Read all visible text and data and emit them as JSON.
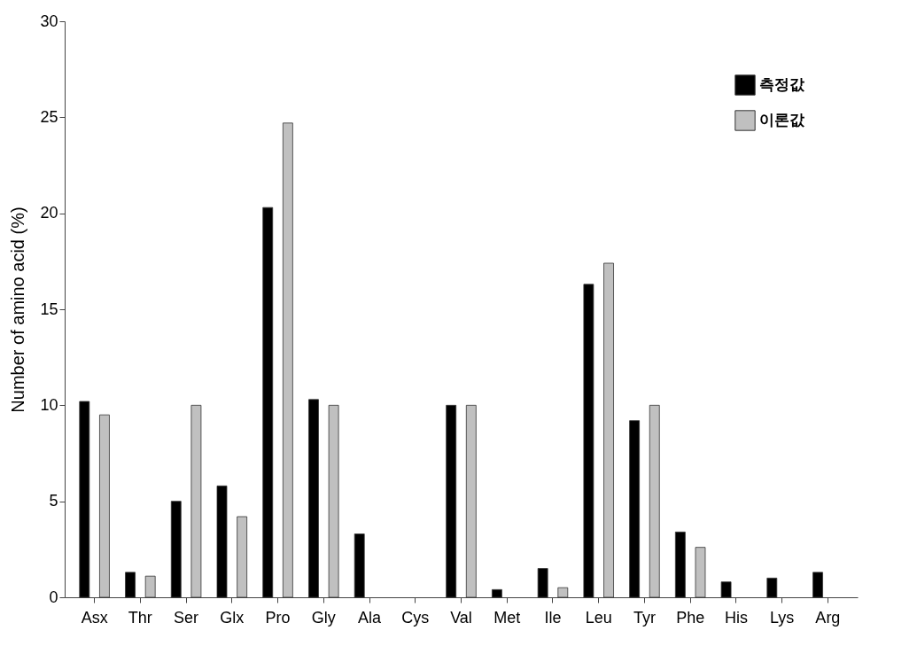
{
  "chart_data": {
    "type": "bar",
    "ylabel": "Number of amino acid (%)",
    "categories": [
      "Asx",
      "Thr",
      "Ser",
      "Glx",
      "Pro",
      "Gly",
      "Ala",
      "Cys",
      "Val",
      "Met",
      "Ile",
      "Leu",
      "Tyr",
      "Phe",
      "His",
      "Lys",
      "Arg"
    ],
    "series": [
      {
        "name": "측정값",
        "color": "#000000",
        "values": [
          10.2,
          1.3,
          5.0,
          5.8,
          20.3,
          10.3,
          3.3,
          null,
          10.0,
          0.4,
          1.5,
          16.3,
          9.2,
          3.4,
          0.8,
          1.0,
          1.3
        ]
      },
      {
        "name": "이론값",
        "color": "#c0c0c0",
        "values": [
          9.5,
          1.1,
          10.0,
          4.2,
          24.7,
          10.0,
          null,
          null,
          10.0,
          null,
          0.5,
          17.4,
          10.0,
          2.6,
          null,
          null,
          null
        ]
      }
    ],
    "ylim": [
      0,
      30
    ],
    "yticks": [
      0,
      5,
      10,
      15,
      20,
      25,
      30
    ],
    "grid": false,
    "legend": "top right"
  }
}
